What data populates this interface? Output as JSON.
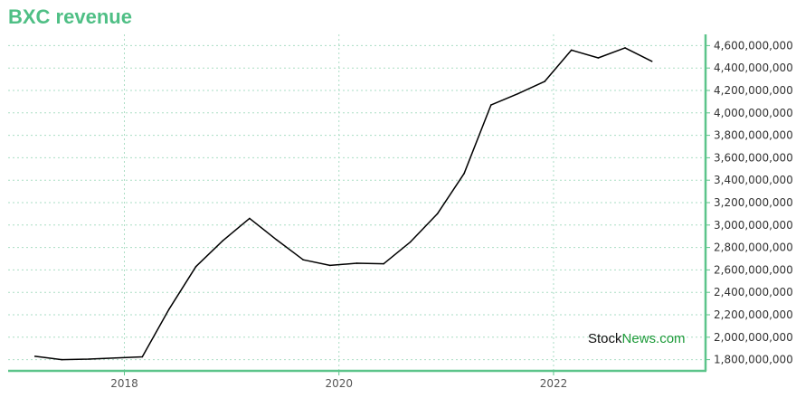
{
  "chart_data": {
    "type": "line",
    "title": "BXC revenue",
    "xlabel": "",
    "ylabel": "",
    "x": [
      "2017-03",
      "2017-06",
      "2017-09",
      "2017-12",
      "2018-03",
      "2018-06",
      "2018-09",
      "2018-12",
      "2019-03",
      "2019-06",
      "2019-09",
      "2019-12",
      "2020-03",
      "2020-06",
      "2020-09",
      "2020-12",
      "2021-03",
      "2021-06",
      "2021-09",
      "2021-12",
      "2022-03",
      "2022-06",
      "2022-09",
      "2022-12"
    ],
    "series": [
      {
        "values": [
          1830000000,
          1800000000,
          1805000000,
          1815000000,
          1825000000,
          2250000000,
          2630000000,
          2860000000,
          3060000000,
          2870000000,
          2690000000,
          2640000000,
          2660000000,
          2655000000,
          2850000000,
          3100000000,
          3460000000,
          4070000000,
          4170000000,
          4280000000,
          4560000000,
          4490000000,
          4580000000,
          4460000000
        ]
      }
    ],
    "x_ticks": [
      "2018",
      "2020",
      "2022"
    ],
    "y_ticks": [
      "1,800,000,000",
      "2,000,000,000",
      "2,200,000,000",
      "2,400,000,000",
      "2,600,000,000",
      "2,800,000,000",
      "3,000,000,000",
      "3,200,000,000",
      "3,400,000,000",
      "3,600,000,000",
      "3,800,000,000",
      "4,000,000,000",
      "4,200,000,000",
      "4,400,000,000",
      "4,600,000,000"
    ],
    "ylim": [
      1700000000,
      4700000000
    ],
    "xlim": [
      "2016-12",
      "2023-06"
    ],
    "grid": true,
    "y_axis_side": "right"
  },
  "watermark": {
    "part1": "Stock",
    "part2": "News",
    "part3": ".com"
  },
  "colors": {
    "title": "#4fbf85",
    "axis": "#5cc48a",
    "grid": "#aaddc4",
    "line": "#000000",
    "wm_dark": "#111111",
    "wm_green": "#1e9b3a"
  }
}
